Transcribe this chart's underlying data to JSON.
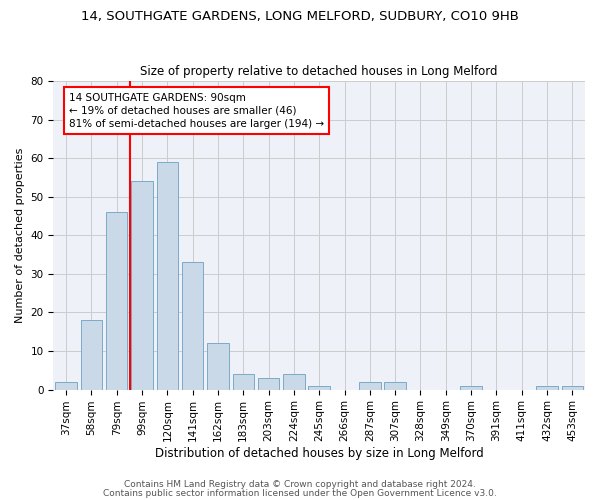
{
  "title1": "14, SOUTHGATE GARDENS, LONG MELFORD, SUDBURY, CO10 9HB",
  "title2": "Size of property relative to detached houses in Long Melford",
  "xlabel": "Distribution of detached houses by size in Long Melford",
  "ylabel": "Number of detached properties",
  "bar_labels": [
    "37sqm",
    "58sqm",
    "79sqm",
    "99sqm",
    "120sqm",
    "141sqm",
    "162sqm",
    "183sqm",
    "203sqm",
    "224sqm",
    "245sqm",
    "266sqm",
    "287sqm",
    "307sqm",
    "328sqm",
    "349sqm",
    "370sqm",
    "391sqm",
    "411sqm",
    "432sqm",
    "453sqm"
  ],
  "bar_values": [
    2,
    18,
    46,
    54,
    59,
    33,
    12,
    4,
    3,
    4,
    1,
    0,
    2,
    2,
    0,
    0,
    1,
    0,
    0,
    1,
    1
  ],
  "bar_color": "#c9d9e8",
  "bar_edge_color": "#7aaac8",
  "vline_bin_index": 2.52,
  "annotation_text": "14 SOUTHGATE GARDENS: 90sqm\n← 19% of detached houses are smaller (46)\n81% of semi-detached houses are larger (194) →",
  "annotation_box_color": "white",
  "annotation_box_edge": "red",
  "vline_color": "red",
  "ylim": [
    0,
    80
  ],
  "yticks": [
    0,
    10,
    20,
    30,
    40,
    50,
    60,
    70,
    80
  ],
  "grid_color": "#cccccc",
  "bg_color": "#eef2f8",
  "footer1": "Contains HM Land Registry data © Crown copyright and database right 2024.",
  "footer2": "Contains public sector information licensed under the Open Government Licence v3.0.",
  "title1_fontsize": 9.5,
  "title2_fontsize": 8.5,
  "xlabel_fontsize": 8.5,
  "ylabel_fontsize": 8,
  "tick_fontsize": 7.5,
  "footer_fontsize": 6.5,
  "annotation_fontsize": 7.5
}
